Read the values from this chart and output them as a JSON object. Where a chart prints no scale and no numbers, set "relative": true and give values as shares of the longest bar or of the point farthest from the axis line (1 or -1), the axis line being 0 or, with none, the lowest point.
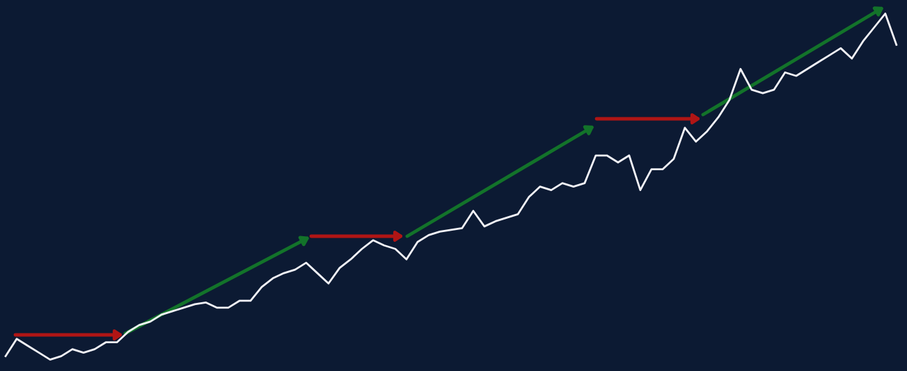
{
  "chart_data": {
    "type": "line",
    "relative": true,
    "categories": [
      null,
      null,
      null,
      null,
      null,
      null,
      null,
      null,
      null,
      null,
      null,
      null,
      null,
      null,
      null,
      null,
      null,
      null,
      null,
      null,
      null,
      null,
      null,
      null,
      null,
      null,
      null,
      null,
      null,
      null,
      null,
      null,
      null,
      null,
      null,
      null,
      null,
      null,
      null,
      null,
      null,
      null,
      null,
      null,
      null,
      null,
      null,
      null,
      null,
      null,
      null,
      null,
      null,
      null,
      null,
      null,
      null,
      null,
      null,
      null,
      null,
      null,
      null,
      null,
      null,
      null,
      null,
      null,
      null,
      null,
      null,
      null,
      null,
      null,
      null,
      null,
      null,
      null,
      null,
      null,
      null
    ],
    "series": [
      {
        "color": "#f2f2f7",
        "values": [
          0.01,
          0.06,
          0.04,
          0.02,
          0.0,
          0.01,
          0.03,
          0.02,
          0.03,
          0.05,
          0.05,
          0.08,
          0.1,
          0.11,
          0.13,
          0.14,
          0.15,
          0.16,
          0.165,
          0.15,
          0.15,
          0.17,
          0.17,
          0.21,
          0.235,
          0.25,
          0.26,
          0.28,
          0.25,
          0.22,
          0.265,
          0.29,
          0.32,
          0.345,
          0.33,
          0.32,
          0.29,
          0.34,
          0.36,
          0.37,
          0.375,
          0.38,
          0.43,
          0.385,
          0.4,
          0.41,
          0.42,
          0.47,
          0.5,
          0.49,
          0.51,
          0.5,
          0.51,
          0.59,
          0.59,
          0.57,
          0.59,
          0.49,
          0.55,
          0.55,
          0.58,
          0.67,
          0.63,
          0.66,
          0.7,
          0.75,
          0.84,
          0.78,
          0.77,
          0.78,
          0.83,
          0.82,
          0.84,
          0.86,
          0.88,
          0.9,
          0.87,
          0.92,
          0.96,
          1.0,
          0.91
        ]
      }
    ]
  }
}
